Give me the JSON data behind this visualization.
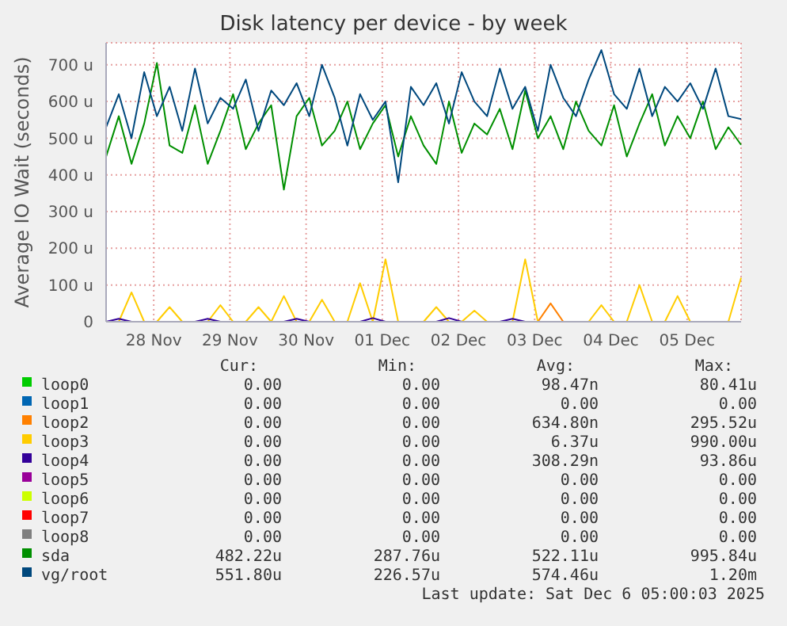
{
  "chart_data": {
    "type": "line",
    "title": "Disk latency per device - by week",
    "ylabel": "Average IO Wait (seconds)",
    "x": [
      "2025-11-27T21:00",
      "2025-11-28T01:00",
      "2025-11-28T05:00",
      "2025-11-28T09:00",
      "2025-11-28T13:00",
      "2025-11-28T17:00",
      "2025-11-28T21:00",
      "2025-11-29T01:00",
      "2025-11-29T05:00",
      "2025-11-29T09:00",
      "2025-11-29T13:00",
      "2025-11-29T17:00",
      "2025-11-29T21:00",
      "2025-11-30T01:00",
      "2025-11-30T05:00",
      "2025-11-30T09:00",
      "2025-11-30T13:00",
      "2025-11-30T17:00",
      "2025-11-30T21:00",
      "2025-12-01T01:00",
      "2025-12-01T05:00",
      "2025-12-01T09:00",
      "2025-12-01T13:00",
      "2025-12-01T17:00",
      "2025-12-01T21:00",
      "2025-12-02T01:00",
      "2025-12-02T05:00",
      "2025-12-02T09:00",
      "2025-12-02T13:00",
      "2025-12-02T17:00",
      "2025-12-02T21:00",
      "2025-12-03T01:00",
      "2025-12-03T05:00",
      "2025-12-03T09:00",
      "2025-12-03T13:00",
      "2025-12-03T17:00",
      "2025-12-03T21:00",
      "2025-12-04T01:00",
      "2025-12-04T05:00",
      "2025-12-04T09:00",
      "2025-12-04T13:00",
      "2025-12-04T17:00",
      "2025-12-04T21:00",
      "2025-12-05T01:00",
      "2025-12-05T05:00",
      "2025-12-05T09:00",
      "2025-12-05T13:00",
      "2025-12-05T17:00",
      "2025-12-05T21:00",
      "2025-12-06T01:00",
      "2025-12-06T05:00"
    ],
    "xlim": [
      "2025-11-27T21:00",
      "2025-12-06T05:00"
    ],
    "xticks": [
      {
        "value": "2025-11-28T12:00",
        "label": "28 Nov"
      },
      {
        "value": "2025-11-29T12:00",
        "label": "29 Nov"
      },
      {
        "value": "2025-11-30T12:00",
        "label": "30 Nov"
      },
      {
        "value": "2025-12-01T12:00",
        "label": "01 Dec"
      },
      {
        "value": "2025-12-02T12:00",
        "label": "02 Dec"
      },
      {
        "value": "2025-12-03T12:00",
        "label": "03 Dec"
      },
      {
        "value": "2025-12-04T12:00",
        "label": "04 Dec"
      },
      {
        "value": "2025-12-05T12:00",
        "label": "05 Dec"
      }
    ],
    "ylim": [
      0,
      760
    ],
    "yticks": [
      0,
      {
        "value": 100,
        "label": "100 u"
      },
      {
        "value": 200,
        "label": "200 u"
      },
      {
        "value": 300,
        "label": "300 u"
      },
      {
        "value": 400,
        "label": "400 u"
      },
      {
        "value": 500,
        "label": "500 u"
      },
      {
        "value": 600,
        "label": "600 u"
      },
      {
        "value": 700,
        "label": "700 u"
      }
    ],
    "grid": true,
    "legend": "bottom",
    "series": [
      {
        "name": "loop0",
        "color": "#00cc00",
        "values": [
          null,
          null,
          null,
          null,
          null,
          null,
          null,
          null,
          null,
          null,
          null,
          null,
          null,
          null,
          null,
          null,
          null,
          null,
          null,
          null,
          null,
          null,
          null,
          null,
          null,
          null,
          null,
          null,
          null,
          null,
          null,
          null,
          null,
          null,
          null,
          null,
          null,
          null,
          null,
          null,
          null,
          null,
          null,
          null,
          null,
          null,
          null,
          null,
          null,
          null,
          null
        ]
      },
      {
        "name": "loop1",
        "color": "#0066b3",
        "values": [
          null,
          null,
          null,
          null,
          null,
          null,
          null,
          null,
          null,
          null,
          null,
          null,
          null,
          null,
          null,
          null,
          null,
          null,
          null,
          null,
          null,
          null,
          null,
          null,
          null,
          null,
          null,
          null,
          null,
          null,
          null,
          null,
          null,
          null,
          null,
          null,
          null,
          null,
          null,
          null,
          null,
          null,
          null,
          null,
          null,
          null,
          null,
          null,
          null,
          null,
          null
        ]
      },
      {
        "name": "loop2",
        "color": "#ff8000",
        "values": [
          null,
          null,
          null,
          null,
          null,
          null,
          null,
          null,
          null,
          null,
          null,
          null,
          null,
          null,
          null,
          null,
          null,
          null,
          null,
          null,
          null,
          null,
          null,
          null,
          null,
          null,
          null,
          null,
          null,
          null,
          null,
          null,
          null,
          null,
          0,
          50,
          0,
          null,
          null,
          null,
          null,
          null,
          null,
          null,
          null,
          null,
          null,
          null,
          null,
          null,
          null
        ]
      },
      {
        "name": "loop3",
        "color": "#ffcc00",
        "values": [
          null,
          0,
          80,
          0,
          0,
          40,
          0,
          null,
          0,
          45,
          0,
          0,
          40,
          0,
          70,
          0,
          0,
          60,
          0,
          0,
          105,
          0,
          170,
          0,
          null,
          0,
          40,
          0,
          0,
          30,
          0,
          null,
          0,
          170,
          0,
          null,
          null,
          null,
          0,
          45,
          0,
          0,
          100,
          0,
          0,
          70,
          0,
          null,
          null,
          0,
          120
        ]
      },
      {
        "name": "loop4",
        "color": "#330099",
        "values": [
          0,
          8,
          0,
          null,
          null,
          null,
          null,
          0,
          8,
          0,
          null,
          null,
          null,
          null,
          0,
          8,
          0,
          null,
          null,
          null,
          0,
          10,
          0,
          null,
          null,
          null,
          0,
          10,
          0,
          null,
          null,
          0,
          8,
          0,
          null,
          null,
          null,
          null,
          null,
          null,
          null,
          null,
          null,
          null,
          null,
          null,
          null,
          null,
          null,
          null,
          null
        ]
      },
      {
        "name": "loop5",
        "color": "#990099",
        "values": [
          null,
          null,
          null,
          null,
          null,
          null,
          null,
          null,
          null,
          null,
          null,
          null,
          null,
          null,
          null,
          null,
          null,
          null,
          null,
          null,
          null,
          null,
          null,
          null,
          null,
          null,
          null,
          null,
          null,
          null,
          null,
          null,
          null,
          null,
          null,
          null,
          null,
          null,
          null,
          null,
          null,
          null,
          null,
          null,
          null,
          null,
          null,
          null,
          null,
          null,
          null
        ]
      },
      {
        "name": "loop6",
        "color": "#ccff00",
        "values": [
          null,
          null,
          null,
          null,
          null,
          null,
          null,
          null,
          null,
          null,
          null,
          null,
          null,
          null,
          null,
          null,
          null,
          null,
          null,
          null,
          null,
          null,
          null,
          null,
          null,
          null,
          null,
          null,
          null,
          null,
          null,
          null,
          null,
          null,
          null,
          null,
          null,
          null,
          null,
          null,
          null,
          null,
          null,
          null,
          null,
          null,
          null,
          null,
          null,
          null,
          null
        ]
      },
      {
        "name": "loop7",
        "color": "#ff0000",
        "values": [
          null,
          null,
          null,
          null,
          null,
          null,
          null,
          null,
          null,
          null,
          null,
          null,
          null,
          null,
          null,
          null,
          null,
          null,
          null,
          null,
          null,
          null,
          null,
          null,
          null,
          null,
          null,
          null,
          null,
          null,
          null,
          null,
          null,
          null,
          null,
          null,
          null,
          null,
          null,
          null,
          null,
          null,
          null,
          null,
          null,
          null,
          null,
          null,
          null,
          null,
          null
        ]
      },
      {
        "name": "loop8",
        "color": "#808080",
        "values": [
          null,
          null,
          null,
          null,
          null,
          null,
          null,
          null,
          null,
          null,
          null,
          null,
          null,
          null,
          null,
          null,
          null,
          null,
          null,
          null,
          null,
          null,
          null,
          null,
          null,
          null,
          null,
          null,
          null,
          null,
          null,
          null,
          null,
          null,
          null,
          null,
          null,
          null,
          null,
          null,
          null,
          null,
          null,
          null,
          null,
          null,
          null,
          null,
          null,
          null,
          null
        ]
      },
      {
        "name": "sda",
        "color": "#008f00",
        "values": [
          450,
          560,
          430,
          540,
          705,
          480,
          460,
          590,
          430,
          520,
          620,
          470,
          540,
          590,
          360,
          560,
          610,
          480,
          520,
          600,
          470,
          540,
          590,
          450,
          560,
          480,
          430,
          600,
          460,
          540,
          510,
          580,
          470,
          630,
          500,
          560,
          470,
          600,
          520,
          480,
          590,
          450,
          540,
          620,
          480,
          560,
          500,
          600,
          470,
          530,
          482
        ]
      },
      {
        "name": "vg/root",
        "color": "#00487d",
        "values": [
          530,
          620,
          500,
          680,
          560,
          640,
          520,
          690,
          540,
          610,
          580,
          660,
          520,
          630,
          590,
          650,
          560,
          700,
          610,
          480,
          620,
          550,
          600,
          380,
          640,
          590,
          650,
          540,
          680,
          600,
          560,
          690,
          580,
          640,
          520,
          700,
          610,
          560,
          660,
          740,
          620,
          580,
          690,
          560,
          640,
          600,
          650,
          580,
          690,
          560,
          552
        ]
      }
    ],
    "annotations": [
      "Cur:",
      "Min:",
      "Avg:",
      "Max:",
      "0.00",
      "0.00",
      "98.47n",
      "80.41u",
      "0.00",
      "0.00",
      "0.00",
      "0.00",
      "0.00",
      "0.00",
      "634.80n",
      "295.52u",
      "0.00",
      "0.00",
      "6.37u",
      "990.00u",
      "0.00",
      "0.00",
      "308.29n",
      "93.86u",
      "0.00",
      "0.00",
      "0.00",
      "0.00",
      "0.00",
      "0.00",
      "0.00",
      "0.00",
      "0.00",
      "0.00",
      "0.00",
      "0.00",
      "0.00",
      "0.00",
      "0.00",
      "0.00",
      "482.22u",
      "287.76u",
      "522.11u",
      "995.84u",
      "551.80u",
      "226.57u",
      "574.46u",
      "1.20m",
      "Last update: Sat Dec  6 05:00:03 2025"
    ]
  }
}
